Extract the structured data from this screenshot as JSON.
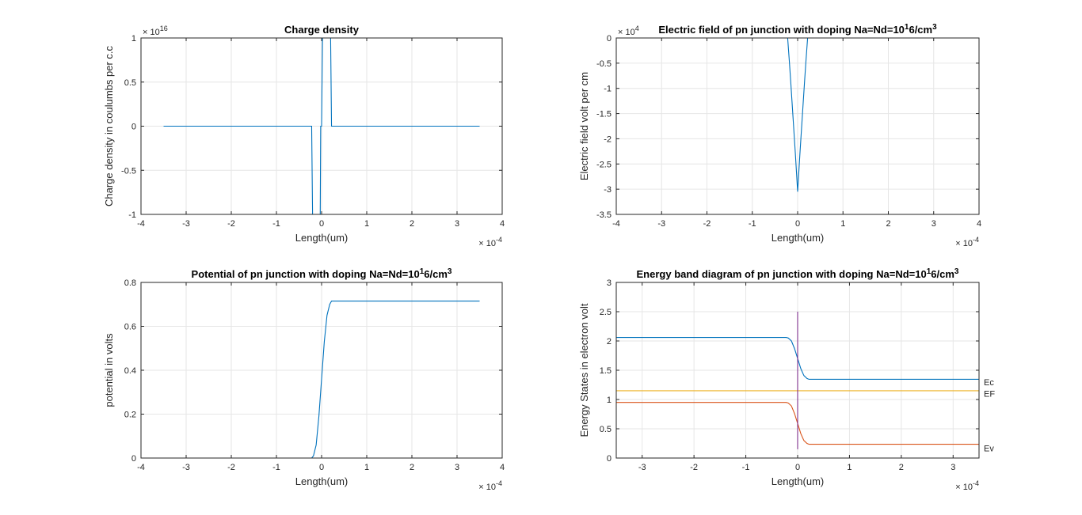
{
  "chart_data": [
    {
      "type": "line",
      "title": "Charge density",
      "title_sup": "",
      "title_tail": "",
      "xlabel": "Length(um)",
      "ylabel": "Charge density in coulumbs per c.c",
      "xlim": [
        -4,
        4
      ],
      "ylim": [
        -1,
        1
      ],
      "x_scale_base": "10",
      "x_scale_exp": "-4",
      "y_scale_base": "10",
      "y_scale_exp": "16",
      "y_scale_prefix": "×",
      "xticks": [
        -4,
        -3,
        -2,
        -1,
        0,
        1,
        2,
        3,
        4
      ],
      "xtick_labels": [
        "-4",
        "-3",
        "-2",
        "-1",
        "0",
        "1",
        "2",
        "3",
        "4"
      ],
      "yticks": [
        -1,
        -0.5,
        0,
        0.5,
        1
      ],
      "ytick_labels": [
        "-1",
        "-0.5",
        "0",
        "0.5",
        "1"
      ],
      "grid": true,
      "series": [
        {
          "color": "#0072BD",
          "x": [
            -3.5,
            -0.22,
            -0.2,
            -0.03,
            -0.02,
            0.0,
            0.02,
            0.03,
            0.2,
            0.22,
            3.5
          ],
          "y": [
            0,
            0,
            -1,
            -1,
            0,
            0,
            1,
            1,
            1,
            0,
            0
          ]
        }
      ]
    },
    {
      "type": "line",
      "title": "Electric field of pn junction with doping Na=Nd=10",
      "title_sup": "1",
      "title_tail": "6/cm",
      "title_sup2": "3",
      "xlabel": "Length(um)",
      "ylabel": "Electric field volt per cm",
      "xlim": [
        -4,
        4
      ],
      "ylim": [
        -3.5,
        0
      ],
      "x_scale_base": "10",
      "x_scale_exp": "-4",
      "y_scale_base": "10",
      "y_scale_exp": "4",
      "y_scale_prefix": "×",
      "xticks": [
        -4,
        -3,
        -2,
        -1,
        0,
        1,
        2,
        3,
        4
      ],
      "xtick_labels": [
        "-4",
        "-3",
        "-2",
        "-1",
        "0",
        "1",
        "2",
        "3",
        "4"
      ],
      "yticks": [
        -3.5,
        -3,
        -2.5,
        -2,
        -1.5,
        -1,
        -0.5,
        0
      ],
      "ytick_labels": [
        "-3.5",
        "-3",
        "-2.5",
        "-2",
        "-1.5",
        "-1",
        "-0.5",
        "0"
      ],
      "grid": true,
      "series": [
        {
          "color": "#0072BD",
          "x": [
            -3.5,
            -0.22,
            -0.18,
            -0.15,
            -0.1,
            -0.05,
            0.0,
            0.05,
            0.1,
            0.15,
            0.18,
            0.22,
            3.5
          ],
          "y": [
            0,
            0,
            -0.5,
            -0.9,
            -1.6,
            -2.3,
            -3.05,
            -2.3,
            -1.6,
            -0.9,
            -0.5,
            0,
            0
          ]
        }
      ]
    },
    {
      "type": "line",
      "title": "Potential of pn junction with doping Na=Nd=10",
      "title_sup": "1",
      "title_tail": "6/cm",
      "title_sup2": "3",
      "xlabel": "Length(um)",
      "ylabel": "potential in volts",
      "xlim": [
        -4,
        4
      ],
      "ylim": [
        0,
        0.8
      ],
      "x_scale_base": "10",
      "x_scale_exp": "-4",
      "xticks": [
        -4,
        -3,
        -2,
        -1,
        0,
        1,
        2,
        3,
        4
      ],
      "xtick_labels": [
        "-4",
        "-3",
        "-2",
        "-1",
        "0",
        "1",
        "2",
        "3",
        "4"
      ],
      "yticks": [
        0,
        0.2,
        0.4,
        0.6,
        0.8
      ],
      "ytick_labels": [
        "0",
        "0.2",
        "0.4",
        "0.6",
        "0.8"
      ],
      "grid": true,
      "series": [
        {
          "color": "#0072BD",
          "x": [
            -3.5,
            -0.22,
            -0.18,
            -0.12,
            -0.06,
            0.0,
            0.06,
            0.12,
            0.18,
            0.22,
            3.5
          ],
          "y": [
            0,
            0,
            0.01,
            0.06,
            0.19,
            0.36,
            0.53,
            0.65,
            0.7,
            0.715,
            0.715
          ]
        }
      ]
    },
    {
      "type": "line",
      "title": "Energy band diagram of pn junction with doping Na=Nd=10",
      "title_sup": "1",
      "title_tail": "6/cm",
      "title_sup2": "3",
      "xlabel": "Length(um)",
      "ylabel": "Energy States in electron volt",
      "xlim": [
        -3.5,
        3.5
      ],
      "ylim": [
        0,
        3
      ],
      "x_scale_base": "10",
      "x_scale_exp": "-4",
      "xticks": [
        -3,
        -2,
        -1,
        0,
        1,
        2,
        3
      ],
      "xtick_labels": [
        "-3",
        "-2",
        "-1",
        "0",
        "1",
        "2",
        "3"
      ],
      "yticks": [
        0,
        0.5,
        1,
        1.5,
        2,
        2.5,
        3
      ],
      "ytick_labels": [
        "0",
        "0.5",
        "1",
        "1.5",
        "2",
        "2.5",
        "3"
      ],
      "grid": true,
      "series": [
        {
          "color": "#0072BD",
          "x": [
            -3.5,
            -0.22,
            -0.18,
            -0.12,
            -0.06,
            0.0,
            0.06,
            0.12,
            0.18,
            0.22,
            3.5
          ],
          "y": [
            2.06,
            2.06,
            2.05,
            2.0,
            1.87,
            1.7,
            1.53,
            1.41,
            1.36,
            1.345,
            1.345
          ]
        },
        {
          "color": "#EDB120",
          "x": [
            -3.5,
            3.5
          ],
          "y": [
            1.15,
            1.15
          ]
        },
        {
          "color": "#D95319",
          "x": [
            -3.5,
            -0.22,
            -0.18,
            -0.12,
            -0.06,
            0.0,
            0.06,
            0.12,
            0.18,
            0.22,
            3.5
          ],
          "y": [
            0.95,
            0.95,
            0.94,
            0.89,
            0.76,
            0.59,
            0.42,
            0.3,
            0.25,
            0.235,
            0.235
          ]
        },
        {
          "color": "#7E2F8E",
          "x": [
            0,
            0
          ],
          "y": [
            0.15,
            2.5
          ]
        }
      ],
      "annotations": [
        {
          "text": "Ec",
          "y": 1.3
        },
        {
          "text": "EF",
          "y": 1.1
        },
        {
          "text": "Ev",
          "y": 0.17
        }
      ]
    }
  ]
}
